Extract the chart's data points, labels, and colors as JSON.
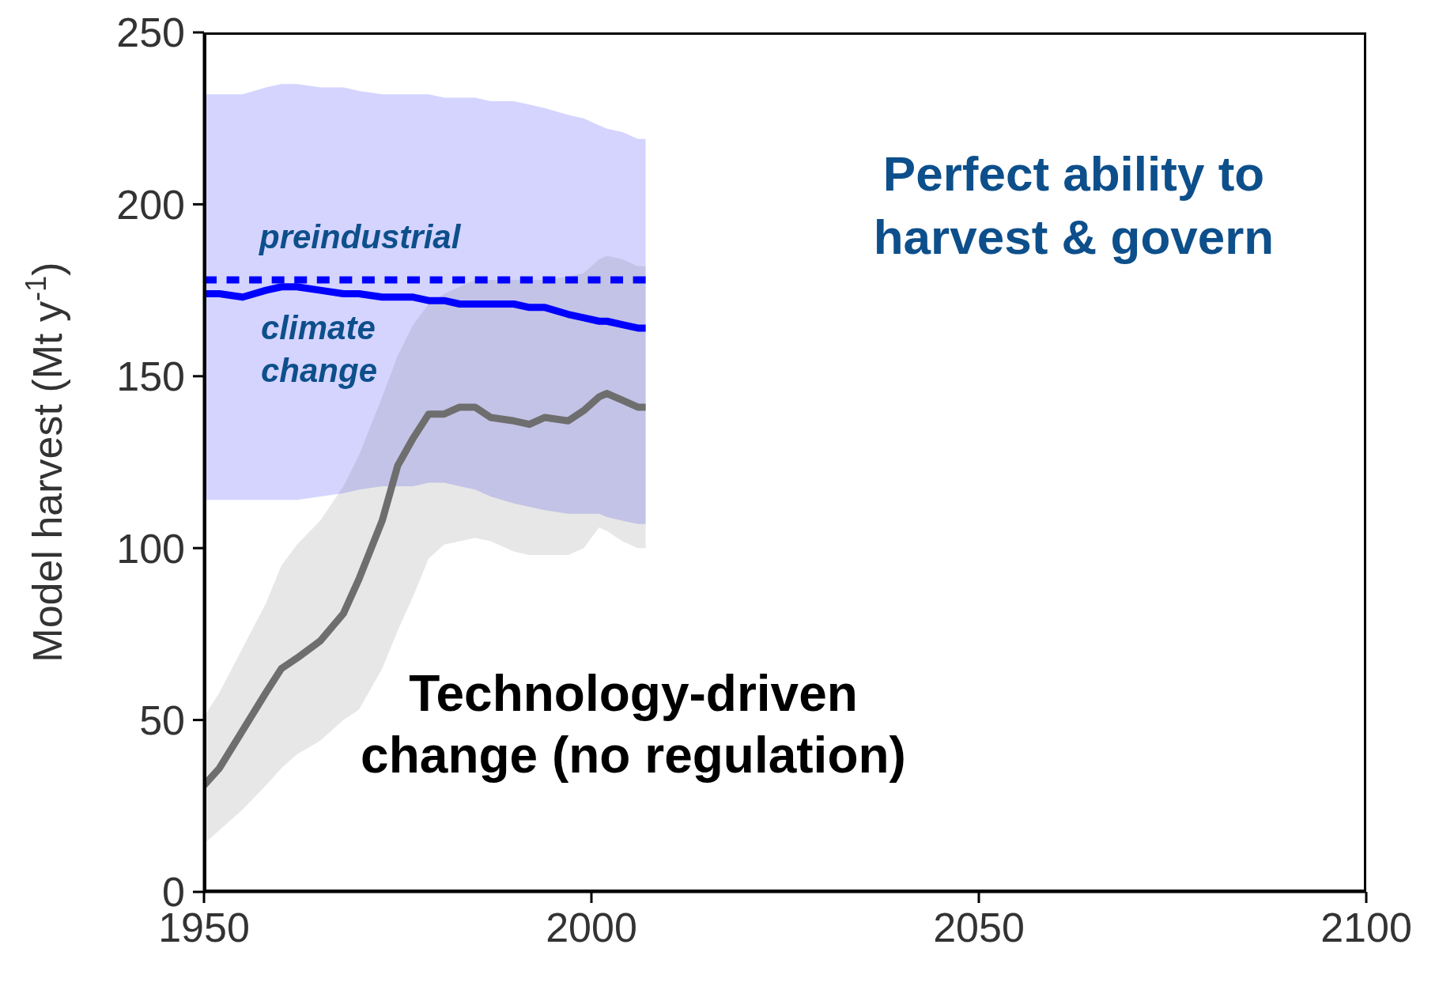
{
  "chart_data": {
    "type": "line",
    "ylabel": "Model harvest (Mt y$^{-1}$)",
    "x": [
      1950,
      1952,
      1955,
      1958,
      1960,
      1962,
      1965,
      1968,
      1970,
      1973,
      1975,
      1977,
      1979,
      1981,
      1983,
      1985,
      1987,
      1990,
      1992,
      1994,
      1997,
      1999,
      2001,
      2002,
      2004,
      2006,
      2007
    ],
    "xlim": [
      1950,
      2100
    ],
    "xticks": [
      1950,
      2000,
      2050,
      2100
    ],
    "ylim": [
      0,
      250
    ],
    "yticks": [
      0,
      50,
      100,
      150,
      200,
      250
    ],
    "series": [
      {
        "name": "preindustrial",
        "color": "#0000ff",
        "line_style": "dotted",
        "values": [
          178,
          178,
          178,
          178,
          178,
          178,
          178,
          178,
          178,
          178,
          178,
          178,
          178,
          178,
          178,
          178,
          178,
          178,
          178,
          178,
          178,
          178,
          178,
          178,
          178,
          178,
          178
        ]
      },
      {
        "name": "climate change",
        "color": "#0000ff",
        "values": [
          174,
          174,
          173,
          175,
          176,
          176,
          175,
          174,
          174,
          173,
          173,
          173,
          172,
          172,
          171,
          171,
          171,
          171,
          170,
          170,
          168,
          167,
          166,
          166,
          165,
          164,
          164
        ],
        "lower": [
          114,
          114,
          114,
          114,
          114,
          114,
          115,
          116,
          117,
          118,
          118,
          118,
          119,
          119,
          118,
          117,
          115,
          113,
          112,
          111,
          110,
          110,
          110,
          109,
          108,
          107,
          107
        ],
        "upper": [
          232,
          232,
          232,
          234,
          235,
          235,
          234,
          234,
          233,
          232,
          232,
          232,
          232,
          231,
          231,
          231,
          230,
          230,
          229,
          228,
          226,
          225,
          223,
          222,
          221,
          219,
          219
        ]
      },
      {
        "name": "Technology-driven change (no regulation)",
        "color": "#6e6e6e",
        "values": [
          31,
          36,
          47,
          58,
          65,
          68,
          73,
          81,
          91,
          108,
          124,
          132,
          139,
          139,
          141,
          141,
          138,
          137,
          136,
          138,
          137,
          140,
          144,
          145,
          143,
          141,
          141
        ],
        "lower": [
          14,
          18,
          24,
          31,
          36,
          40,
          44,
          50,
          53,
          65,
          76,
          86,
          97,
          101,
          102,
          103,
          102,
          99,
          98,
          98,
          98,
          100,
          106,
          105,
          102,
          100,
          100
        ],
        "upper": [
          51,
          58,
          71,
          84,
          95,
          101,
          108,
          118,
          127,
          144,
          156,
          165,
          171,
          174,
          176,
          178,
          178,
          178,
          178,
          178,
          179,
          180,
          184,
          185,
          184,
          182,
          182
        ]
      }
    ],
    "annotations": [
      "Perfect ability to harvest & govern"
    ]
  }
}
